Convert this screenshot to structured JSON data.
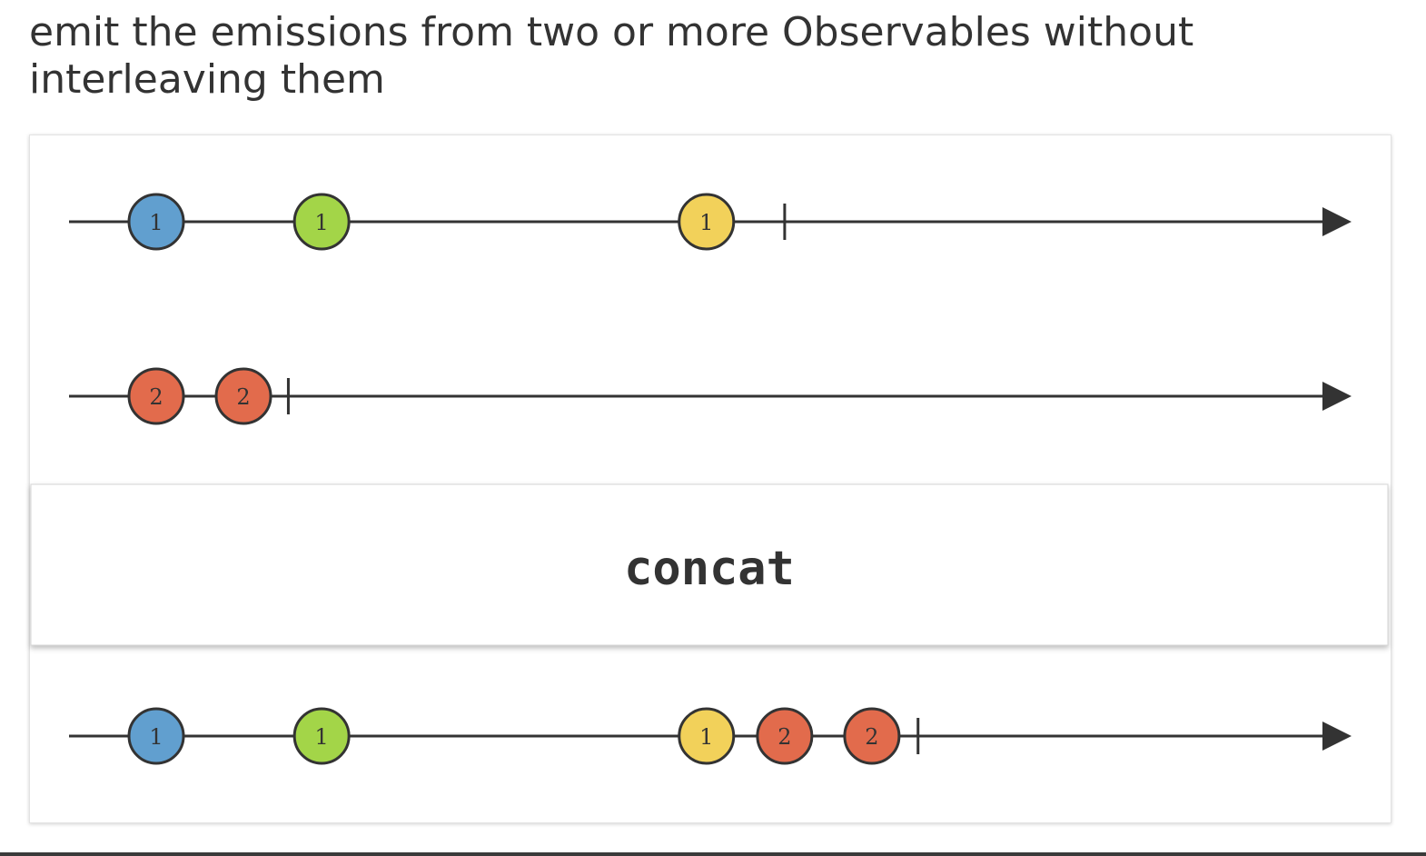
{
  "description": "emit the emissions from two or more Observables without interleaving them",
  "operator": "concat",
  "colors": {
    "line": "#333333",
    "marble_stroke": "#333333",
    "blue": "#619fcf",
    "green": "#a3d548",
    "yellow": "#f2d15a",
    "orange": "#e26b4c",
    "operator_box_bg": "#ffffff",
    "operator_box_border": "#d6d6d6"
  },
  "timelines": {
    "input_1": {
      "marbles": [
        {
          "label": "1",
          "color": "blue",
          "t": 0.068
        },
        {
          "label": "1",
          "color": "green",
          "t": 0.197
        },
        {
          "label": "1",
          "color": "yellow",
          "t": 0.497
        }
      ],
      "complete_t": 0.558
    },
    "input_2": {
      "marbles": [
        {
          "label": "2",
          "color": "orange",
          "t": 0.068
        },
        {
          "label": "2",
          "color": "orange",
          "t": 0.136
        }
      ],
      "complete_t": 0.171
    },
    "output": {
      "marbles": [
        {
          "label": "1",
          "color": "blue",
          "t": 0.068
        },
        {
          "label": "1",
          "color": "green",
          "t": 0.197
        },
        {
          "label": "1",
          "color": "yellow",
          "t": 0.497
        },
        {
          "label": "2",
          "color": "orange",
          "t": 0.558
        },
        {
          "label": "2",
          "color": "orange",
          "t": 0.626
        }
      ],
      "complete_t": 0.662
    }
  }
}
